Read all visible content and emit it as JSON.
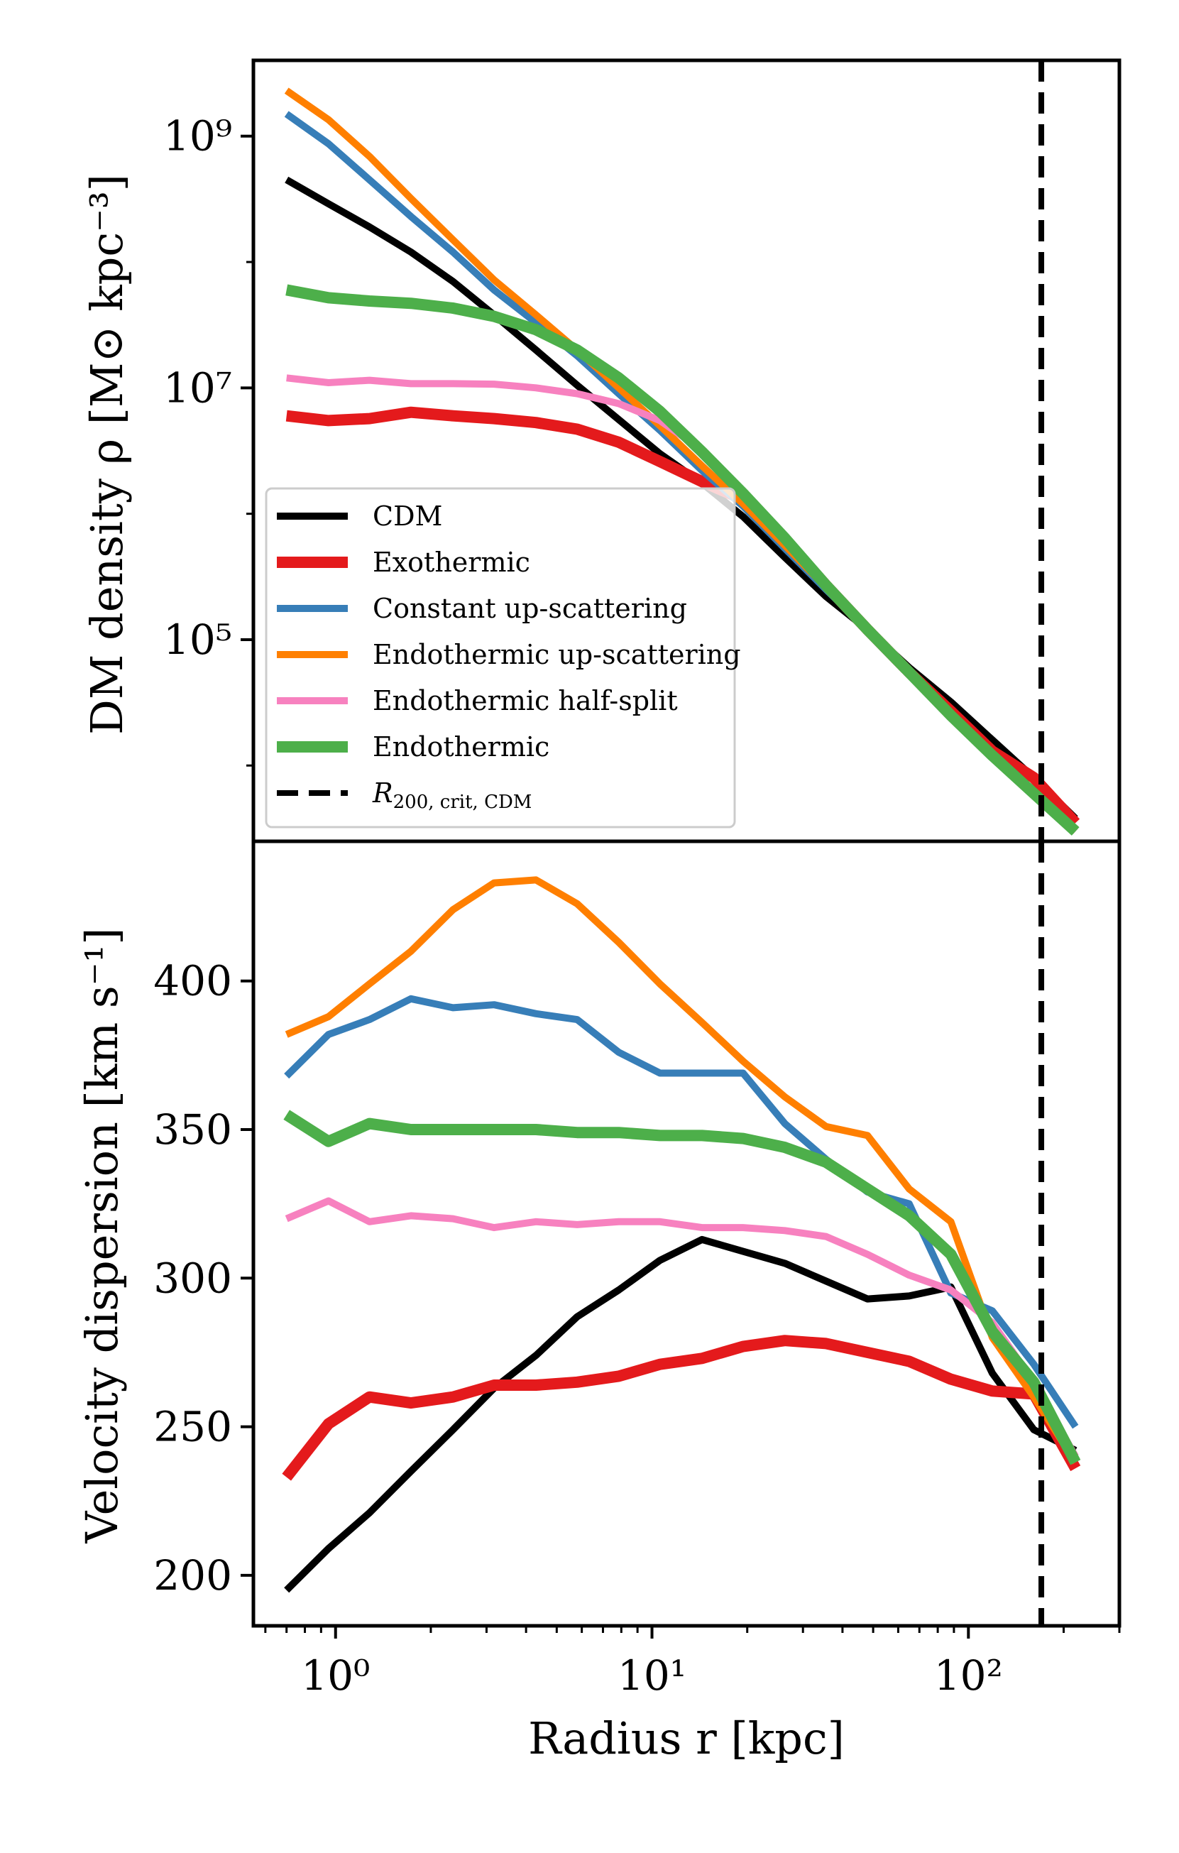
{
  "chart_data": [
    {
      "type": "line",
      "panel": "top",
      "title": "",
      "xlabel": "Radius r [kpc]",
      "ylabel": "DM density ρ [M⊙ kpc⁻³]",
      "xscale": "log",
      "yscale": "log",
      "xlim": [
        0.55,
        300
      ],
      "ylim": [
        2500,
        4000000000
      ],
      "yticks": [
        100000,
        10000000,
        1000000000
      ],
      "ytick_labels": [
        "10⁵",
        "10⁷",
        "10⁹"
      ],
      "x": [
        0.7,
        0.95,
        1.28,
        1.73,
        2.35,
        3.17,
        4.3,
        5.8,
        7.85,
        10.6,
        14.4,
        19.4,
        26.3,
        35.5,
        48,
        65,
        88,
        119,
        161,
        218
      ],
      "series": [
        {
          "name": "CDM",
          "color": "#000000",
          "width": 10,
          "values": [
            450000000,
            290000000,
            190000000,
            120000000,
            70000000,
            38000000,
            20000000,
            10500000,
            5600000,
            3000000,
            1750000,
            950000,
            450000,
            220000,
            120000,
            60000,
            32000,
            16000,
            8000,
            3800
          ]
        },
        {
          "name": "Exothermic",
          "color": "#e41a1c",
          "width": 16,
          "values": [
            6000000,
            5500000,
            5700000,
            6400000,
            6000000,
            5700000,
            5300000,
            4700000,
            3700000,
            2600000,
            1800000,
            1300000,
            630000,
            270000,
            120000,
            55000,
            27000,
            13000,
            8000,
            3500
          ]
        },
        {
          "name": "Constant up-scattering",
          "color": "#377eb8",
          "width": 10,
          "values": [
            1500000000,
            870000000,
            450000000,
            230000000,
            120000000,
            60000000,
            33000000,
            18000000,
            9000000,
            4600000,
            2200000,
            1150000,
            530000,
            250000,
            120000,
            55000,
            25000,
            12000,
            6000,
            3000
          ]
        },
        {
          "name": "Endothermic up-scattering",
          "color": "#ff7f00",
          "width": 10,
          "values": [
            2300000000,
            1350000000,
            690000000,
            320000000,
            150000000,
            72000000,
            38000000,
            20000000,
            10000000,
            5000000,
            2400000,
            1200000,
            560000,
            260000,
            120000,
            55000,
            25000,
            12000,
            6000,
            3000
          ]
        },
        {
          "name": "Endothermic half-split",
          "color": "#f781bf",
          "width": 10,
          "values": [
            12000000,
            11000000,
            11500000,
            10800000,
            10800000,
            10700000,
            10000000,
            9000000,
            7500000,
            5500000,
            3200000,
            1500000,
            610000,
            260000,
            120000,
            55000,
            25000,
            12000,
            6000,
            3000
          ]
        },
        {
          "name": "Endothermic",
          "color": "#4daf4a",
          "width": 16,
          "values": [
            60000000,
            52000000,
            49000000,
            47000000,
            43000000,
            37000000,
            29000000,
            20000000,
            12000000,
            6500000,
            3100000,
            1450000,
            640000,
            270000,
            120000,
            55000,
            25000,
            12000,
            6000,
            3000
          ]
        }
      ],
      "vline": {
        "name": "R200,crit,CDM",
        "x": 170,
        "color": "#000000",
        "style": "dashed"
      },
      "legend": {
        "position": "lower-left",
        "entries": [
          "CDM",
          "Exothermic",
          "Constant up-scattering",
          "Endothermic up-scattering",
          "Endothermic half-split",
          "Endothermic"
        ],
        "r200_label_main": "R",
        "r200_label_sub": "200, crit, CDM"
      }
    },
    {
      "type": "line",
      "panel": "bottom",
      "title": "",
      "xlabel": "Radius r [kpc]",
      "ylabel": "Velocity dispersion [km s⁻¹]",
      "xscale": "log",
      "yscale": "linear",
      "xlim": [
        0.55,
        300
      ],
      "ylim": [
        183,
        447
      ],
      "yticks": [
        200,
        250,
        300,
        350,
        400
      ],
      "ytick_labels": [
        "200",
        "250",
        "300",
        "350",
        "400"
      ],
      "xticks": [
        1,
        10,
        100
      ],
      "xtick_labels": [
        "10⁰",
        "10¹",
        "10²"
      ],
      "x": [
        0.7,
        0.95,
        1.28,
        1.73,
        2.35,
        3.17,
        4.3,
        5.8,
        7.85,
        10.6,
        14.4,
        19.4,
        26.3,
        35.5,
        48,
        65,
        88,
        119,
        161,
        218
      ],
      "series": [
        {
          "name": "CDM",
          "color": "#000000",
          "width": 10,
          "values": [
            195,
            209,
            221,
            235,
            249,
            263,
            274,
            287,
            296,
            306,
            313,
            309,
            305,
            299,
            293,
            294,
            297,
            268,
            249,
            242
          ]
        },
        {
          "name": "Exothermic",
          "color": "#e41a1c",
          "width": 16,
          "values": [
            233,
            251,
            260,
            258,
            260,
            264,
            264,
            265,
            267,
            271,
            273,
            277,
            279,
            278,
            275,
            272,
            266,
            262,
            261,
            236
          ]
        },
        {
          "name": "Constant up-scattering",
          "color": "#377eb8",
          "width": 10,
          "values": [
            368,
            382,
            387,
            394,
            391,
            392,
            389,
            387,
            376,
            369,
            369,
            369,
            352,
            340,
            329,
            325,
            295,
            289,
            271,
            250
          ]
        },
        {
          "name": "Endothermic up-scattering",
          "color": "#ff7f00",
          "width": 10,
          "values": [
            382,
            388,
            399,
            410,
            424,
            433,
            434,
            426,
            413,
            399,
            386,
            373,
            361,
            351,
            348,
            330,
            319,
            280,
            260,
            238
          ]
        },
        {
          "name": "Endothermic half-split",
          "color": "#f781bf",
          "width": 10,
          "values": [
            320,
            326,
            319,
            321,
            320,
            317,
            319,
            318,
            319,
            319,
            317,
            317,
            316,
            314,
            308,
            301,
            296,
            285,
            265,
            240
          ]
        },
        {
          "name": "Endothermic",
          "color": "#4daf4a",
          "width": 16,
          "values": [
            355,
            346,
            352,
            350,
            350,
            350,
            350,
            349,
            349,
            348,
            348,
            347,
            344,
            339,
            330,
            321,
            308,
            282,
            265,
            238
          ]
        }
      ],
      "vline": {
        "name": "R200,crit,CDM",
        "x": 170,
        "color": "#000000",
        "style": "dashed"
      }
    }
  ]
}
